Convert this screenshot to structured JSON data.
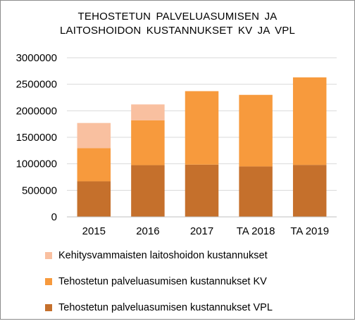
{
  "chart_data": {
    "type": "bar",
    "stacked": true,
    "title_lines": [
      "TEHOSTETUN  PALVELUASUMISEN  JA",
      "LAITOSHOIDON  KUSTANNUKSET  KV JA VPL"
    ],
    "categories": [
      "2015",
      "2016",
      "2017",
      "TA 2018",
      "TA 2019"
    ],
    "ylim": [
      0,
      3000000
    ],
    "y_ticks": [
      "0",
      "500000",
      "1000000",
      "1500000",
      "2000000",
      "2500000",
      "3000000"
    ],
    "y_tick_values": [
      0,
      500000,
      1000000,
      1500000,
      2000000,
      2500000,
      3000000
    ],
    "grid": true,
    "legend_position": "bottom",
    "series": [
      {
        "name": "Tehostetun palveluasumisen kustannukset VPL",
        "color": "#c5702c",
        "values": [
          670000,
          975000,
          985000,
          950000,
          980000
        ]
      },
      {
        "name": "Tehostetun palveluasumisen kustannukset KV",
        "color": "#f79a3d",
        "values": [
          625000,
          845000,
          1385000,
          1350000,
          1650000
        ]
      },
      {
        "name": "Kehitysvammaisten laitoshoidon kustannukset",
        "color": "#f9c0a0",
        "values": [
          475000,
          300000,
          0,
          0,
          0
        ]
      }
    ],
    "legend_order": [
      2,
      1,
      0
    ]
  }
}
